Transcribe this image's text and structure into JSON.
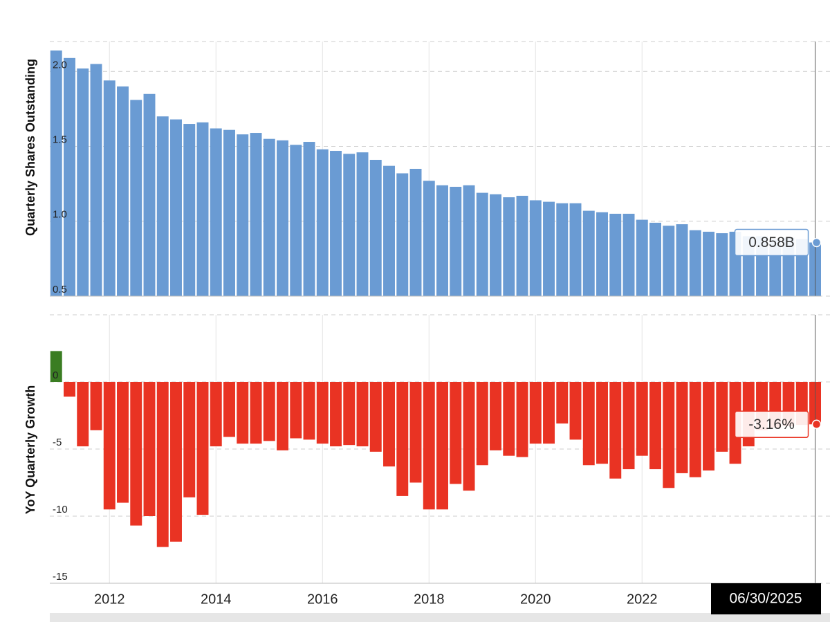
{
  "chart_data": [
    {
      "type": "bar",
      "y_label": "Quarterly Shares Outstanding",
      "x": [
        2011,
        2011.25,
        2011.5,
        2011.75,
        2012,
        2012.25,
        2012.5,
        2012.75,
        2013,
        2013.25,
        2013.5,
        2013.75,
        2014,
        2014.25,
        2014.5,
        2014.75,
        2015,
        2015.25,
        2015.5,
        2015.75,
        2016,
        2016.25,
        2016.5,
        2016.75,
        2017,
        2017.25,
        2017.5,
        2017.75,
        2018,
        2018.25,
        2018.5,
        2018.75,
        2019,
        2019.25,
        2019.5,
        2019.75,
        2020,
        2020.25,
        2020.5,
        2020.75,
        2021,
        2021.25,
        2021.5,
        2021.75,
        2022,
        2022.25,
        2022.5,
        2022.75,
        2023,
        2023.25,
        2023.5,
        2023.75,
        2024,
        2024.25,
        2024.5,
        2024.75,
        2025,
        2025.25
      ],
      "series": [
        {
          "name": "Shares Outstanding",
          "color": "#6a9bd3",
          "values": [
            2.14,
            2.09,
            2.02,
            2.05,
            1.94,
            1.9,
            1.81,
            1.85,
            1.7,
            1.68,
            1.65,
            1.66,
            1.62,
            1.61,
            1.58,
            1.59,
            1.55,
            1.54,
            1.51,
            1.53,
            1.48,
            1.47,
            1.45,
            1.46,
            1.41,
            1.37,
            1.32,
            1.35,
            1.27,
            1.24,
            1.23,
            1.24,
            1.19,
            1.18,
            1.16,
            1.17,
            1.14,
            1.13,
            1.12,
            1.12,
            1.07,
            1.06,
            1.05,
            1.05,
            1.01,
            0.99,
            0.97,
            0.98,
            0.94,
            0.93,
            0.92,
            0.93,
            0.9,
            0.9,
            0.88,
            0.89,
            0.88,
            0.858
          ],
          "value_labels": [
            null,
            null,
            null,
            null,
            null,
            null,
            null,
            null,
            null,
            null,
            null,
            null,
            null,
            null,
            null,
            null,
            null,
            null,
            null,
            null,
            null,
            null,
            null,
            null,
            null,
            null,
            null,
            null,
            null,
            null,
            null,
            null,
            null,
            null,
            null,
            null,
            null,
            null,
            null,
            null,
            null,
            null,
            null,
            null,
            null,
            null,
            null,
            null,
            null,
            null,
            null,
            null,
            null,
            null,
            null,
            null,
            null,
            "0.858B"
          ]
        }
      ],
      "xlim": [
        2010.88,
        2025.36
      ],
      "ylim": [
        0.5,
        2.2
      ],
      "yticks": [
        {
          "value": 0.5,
          "label": "0.5"
        },
        {
          "value": 1,
          "label": "1.0"
        },
        {
          "value": 1.5,
          "label": "1.5"
        },
        {
          "value": 2,
          "label": "2.0"
        }
      ],
      "grid": true
    },
    {
      "type": "bar",
      "y_label": "YoY Quarterly Growth",
      "x": [
        2011,
        2011.25,
        2011.5,
        2011.75,
        2012,
        2012.25,
        2012.5,
        2012.75,
        2013,
        2013.25,
        2013.5,
        2013.75,
        2014,
        2014.25,
        2014.5,
        2014.75,
        2015,
        2015.25,
        2015.5,
        2015.75,
        2016,
        2016.25,
        2016.5,
        2016.75,
        2017,
        2017.25,
        2017.5,
        2017.75,
        2018,
        2018.25,
        2018.5,
        2018.75,
        2019,
        2019.25,
        2019.5,
        2019.75,
        2020,
        2020.25,
        2020.5,
        2020.75,
        2021,
        2021.25,
        2021.5,
        2021.75,
        2022,
        2022.25,
        2022.5,
        2022.75,
        2023,
        2023.25,
        2023.5,
        2023.75,
        2024,
        2024.25,
        2024.5,
        2024.75,
        2025,
        2025.25
      ],
      "series": [
        {
          "name": "YoY Growth",
          "color": "#e93323",
          "positive_color": "#3a7d22",
          "values": [
            2.3,
            -1.1,
            -4.8,
            -3.6,
            -9.5,
            -9.0,
            -10.7,
            -10.0,
            -12.3,
            -11.9,
            -8.6,
            -9.9,
            -4.8,
            -4.1,
            -4.6,
            -4.6,
            -4.4,
            -5.1,
            -4.2,
            -4.3,
            -4.6,
            -4.8,
            -4.7,
            -4.8,
            -5.2,
            -6.3,
            -8.5,
            -7.5,
            -9.5,
            -9.5,
            -7.6,
            -8.1,
            -6.2,
            -5.1,
            -5.5,
            -5.6,
            -4.6,
            -4.6,
            -3.1,
            -4.3,
            -6.2,
            -6.1,
            -7.2,
            -6.5,
            -5.5,
            -6.5,
            -7.9,
            -6.8,
            -7.1,
            -6.6,
            -5.2,
            -6.1,
            -4.8,
            -3.6,
            -3.4,
            -3.3,
            -3.2,
            -3.16
          ],
          "value_labels": [
            null,
            null,
            null,
            null,
            null,
            null,
            null,
            null,
            null,
            null,
            null,
            null,
            null,
            null,
            null,
            null,
            null,
            null,
            null,
            null,
            null,
            null,
            null,
            null,
            null,
            null,
            null,
            null,
            null,
            null,
            null,
            null,
            null,
            null,
            null,
            null,
            null,
            null,
            null,
            null,
            null,
            null,
            null,
            null,
            null,
            null,
            null,
            null,
            null,
            null,
            null,
            null,
            null,
            null,
            null,
            null,
            null,
            "-3.16%"
          ]
        }
      ],
      "xlim": [
        2010.88,
        2025.36
      ],
      "xticks": [
        2012,
        2014,
        2016,
        2018,
        2020,
        2022
      ],
      "ylim": [
        -15,
        5
      ],
      "yticks": [
        -15,
        -10,
        -5,
        0
      ],
      "grid": true,
      "tooltip_date": "06/30/2025"
    }
  ]
}
